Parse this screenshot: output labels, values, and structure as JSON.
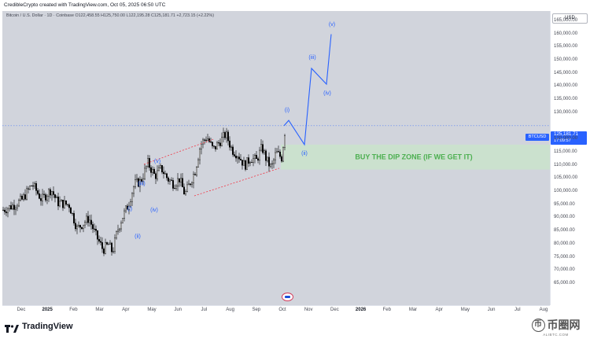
{
  "header": {
    "credit": "CredibleCrypto created with TradingView.com, Oct 05, 2025 06:50 UTC"
  },
  "symbol_info": {
    "line": "Bitcoin / U.S. Dollar · 1D · Coinbase  O122,458.55  H125,750.00  L122,195.28  C125,181.71  +2,723.15 (+2.22%)"
  },
  "currency": "USD",
  "price_axis": [
    {
      "label": "165,000.00",
      "value": 165000
    },
    {
      "label": "160,000.00",
      "value": 160000
    },
    {
      "label": "155,000.00",
      "value": 155000
    },
    {
      "label": "150,000.00",
      "value": 150000
    },
    {
      "label": "145,000.00",
      "value": 145000
    },
    {
      "label": "140,000.00",
      "value": 140000
    },
    {
      "label": "135,000.00",
      "value": 135000
    },
    {
      "label": "130,000.00",
      "value": 130000
    },
    {
      "label": "120,000.00",
      "value": 120000
    },
    {
      "label": "115,000.00",
      "value": 115000
    },
    {
      "label": "110,000.00",
      "value": 110000
    },
    {
      "label": "105,000.00",
      "value": 105000
    },
    {
      "label": "100,000.00",
      "value": 100000
    },
    {
      "label": "95,000.00",
      "value": 95000
    },
    {
      "label": "90,000.00",
      "value": 90000
    },
    {
      "label": "85,000.00",
      "value": 85000
    },
    {
      "label": "80,000.00",
      "value": 80000
    },
    {
      "label": "75,000.00",
      "value": 75000
    },
    {
      "label": "70,000.00",
      "value": 70000
    },
    {
      "label": "65,000.00",
      "value": 65000
    }
  ],
  "time_axis": [
    {
      "label": "Dec",
      "bold": false
    },
    {
      "label": "2025",
      "bold": true
    },
    {
      "label": "Feb",
      "bold": false
    },
    {
      "label": "Mar",
      "bold": false
    },
    {
      "label": "Apr",
      "bold": false
    },
    {
      "label": "May",
      "bold": false
    },
    {
      "label": "Jun",
      "bold": false
    },
    {
      "label": "Jul",
      "bold": false
    },
    {
      "label": "Aug",
      "bold": false
    },
    {
      "label": "Sep",
      "bold": false
    },
    {
      "label": "Oct",
      "bold": false
    },
    {
      "label": "Nov",
      "bold": false
    },
    {
      "label": "Dec",
      "bold": false
    },
    {
      "label": "2026",
      "bold": true
    },
    {
      "label": "Feb",
      "bold": false
    },
    {
      "label": "Mar",
      "bold": false
    },
    {
      "label": "Apr",
      "bold": false
    },
    {
      "label": "May",
      "bold": false
    },
    {
      "label": "Jun",
      "bold": false
    },
    {
      "label": "Jul",
      "bold": false
    },
    {
      "label": "Aug",
      "bold": false
    }
  ],
  "last_price": {
    "ticker": "BTCUSD",
    "price": "125,181.71",
    "countdown": "17:09:57"
  },
  "annotations": {
    "zone_label": "BUY THE DIP ZONE (IF WE GET IT)",
    "waves_past": [
      "(i)",
      "(ii)",
      "(iii)",
      "(iv)",
      "(v)"
    ],
    "waves_projected": [
      "(i)",
      "(ii)",
      "(iii)",
      "(iv)",
      "(v)"
    ]
  },
  "colors": {
    "plot_bg": "#d1d4dc",
    "candle": "#000000",
    "wave": "#2962ff",
    "zone_fill": "#c8e6c9",
    "zone_text": "#4caf50",
    "wedge": "#f23645"
  },
  "footer": {
    "brand": "TradingView",
    "watermark_main": "币圈网",
    "watermark_sub": "ALIBTC.COM"
  }
}
